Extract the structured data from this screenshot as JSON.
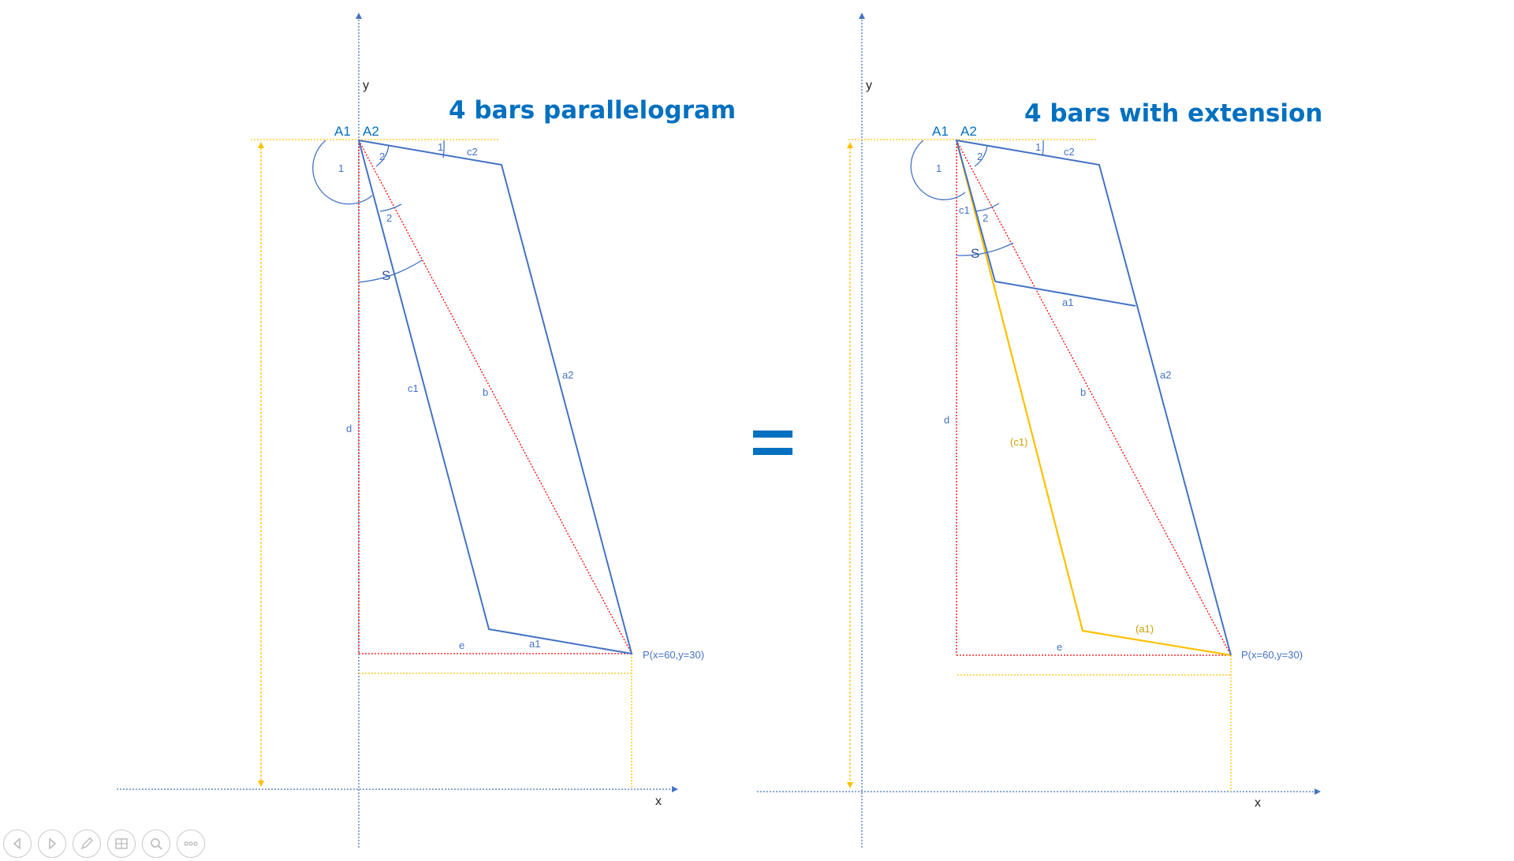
{
  "left": {
    "title": "4 bars parallelogram",
    "labels": {
      "y": "y",
      "x": "x",
      "A1": "A1",
      "A2": "A2",
      "c1": "c1",
      "c2": "c2",
      "a1": "a1",
      "a2": "a2",
      "b": "b",
      "d": "d",
      "e": "e",
      "S": "S",
      "ang1_top": "1",
      "ang1_left": "1",
      "ang2_top": "2",
      "ang2_mid": "2",
      "P": "P(x=60,y=30)"
    }
  },
  "right": {
    "title": "4 bars with extension",
    "labels": {
      "y": "y",
      "x": "x",
      "A1": "A1",
      "A2": "A2",
      "c1": "c1",
      "c2": "c2",
      "a1": "a1",
      "a2": "a2",
      "b": "b",
      "d": "d",
      "e": "e",
      "S": "S",
      "ang1_top": "1",
      "ang1_left": "1",
      "ang2_top": "2",
      "ang2_mid": "2",
      "ext_c1": "(c1)",
      "ext_a1": "(a1)",
      "P": "P(x=60,y=30)"
    }
  },
  "colors": {
    "axis": "#4472c4",
    "bar": "#4472c4",
    "dotted_red": "#ff0000",
    "dimension": "#ffc000",
    "title": "#0070c0"
  },
  "toolbar": {
    "icons": [
      "previous-icon",
      "next-icon",
      "pen-icon",
      "slides-icon",
      "zoom-icon",
      "more-icon"
    ]
  }
}
